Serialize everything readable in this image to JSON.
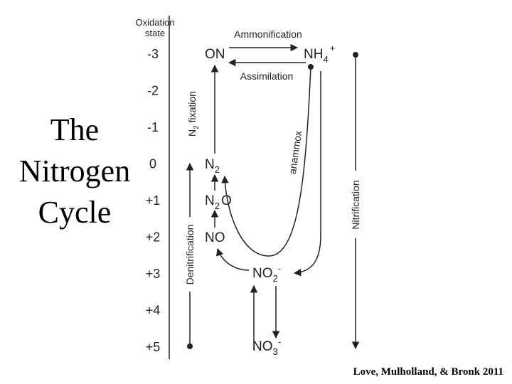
{
  "title": {
    "lines": [
      "The",
      "Nitrogen",
      "Cycle"
    ]
  },
  "axis": {
    "header": [
      "Oxidation",
      "state"
    ],
    "states": [
      "-3",
      "-2",
      "-1",
      "0",
      "+1",
      "+2",
      "+3",
      "+4",
      "+5"
    ]
  },
  "species": {
    "on": {
      "base": "ON"
    },
    "nh4": {
      "base": "NH",
      "sub": "4",
      "sup": "+"
    },
    "n2": {
      "base": "N",
      "sub": "2"
    },
    "n2o": {
      "base": "N",
      "sub": "2",
      "rest": "O"
    },
    "no": {
      "base": "NO"
    },
    "no2": {
      "base": "NO",
      "sub": "2",
      "sup": "-"
    },
    "no3": {
      "base": "NO",
      "sub": "3",
      "sup": "-"
    }
  },
  "processes": {
    "ammonification": "Ammonification",
    "assimilation": "Assimilation",
    "fixation": {
      "base": "N",
      "sub": "2",
      "rest": " fixation"
    },
    "anammox": "anammox",
    "nitrification": "Nitrification",
    "denitrification": "Denitrification"
  },
  "citation": "Love, Mulholland, & Bronk 2011"
}
